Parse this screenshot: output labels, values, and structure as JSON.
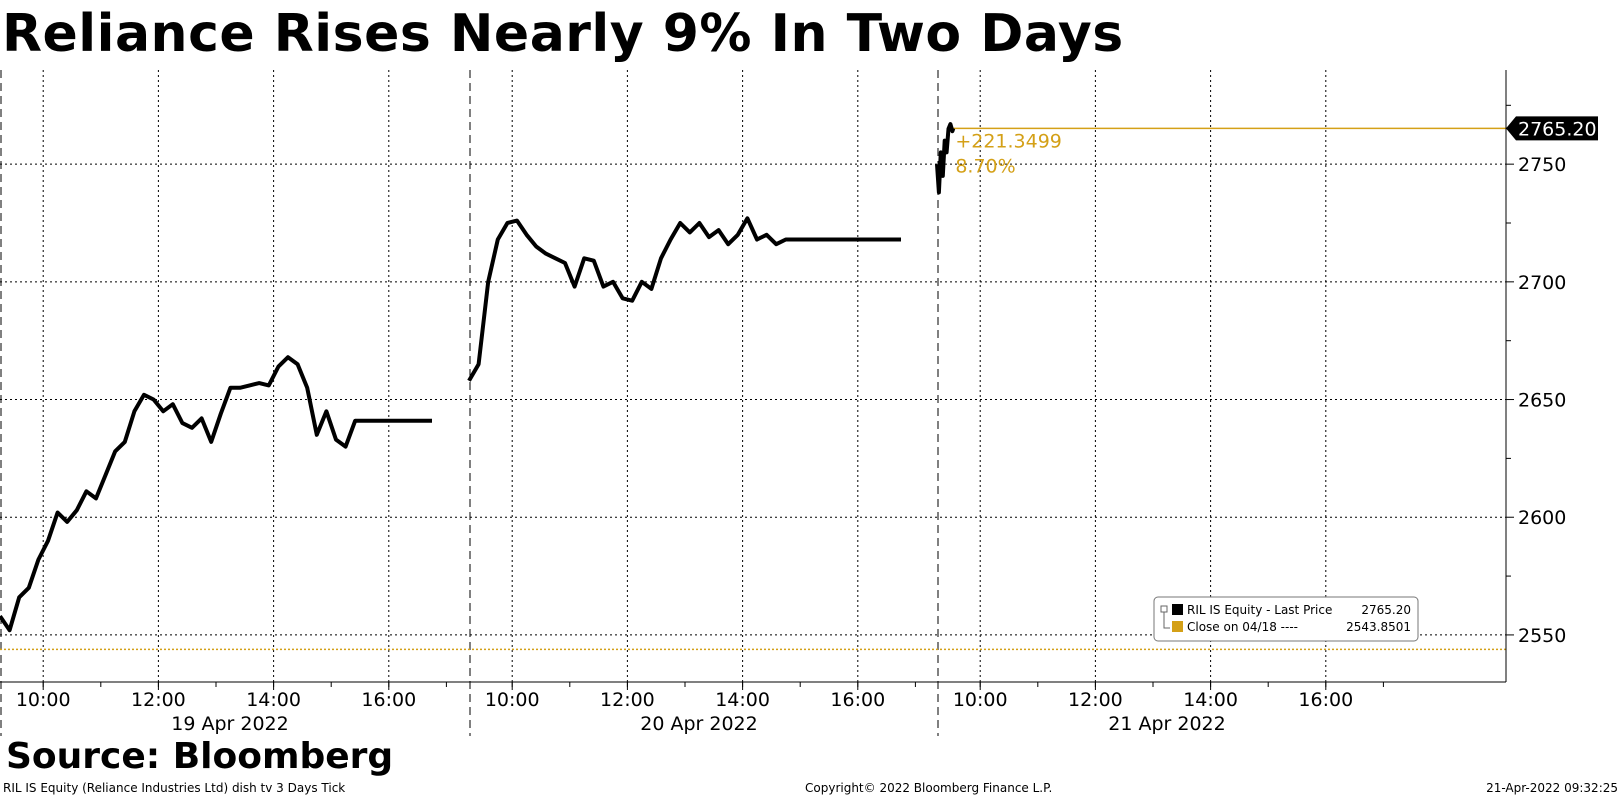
{
  "title": "Reliance Rises Nearly 9% In Two Days",
  "source": "Source: Bloomberg",
  "footer": {
    "left": "RIL IS Equity (Reliance Industries Ltd) dish tv 3 Days  Tick",
    "center": "Copyright© 2022 Bloomberg Finance L.P.",
    "right": "21-Apr-2022 09:32:25"
  },
  "colors": {
    "price": "#000000",
    "reference": "#D4A017",
    "grid": "#000000",
    "background": "#ffffff"
  },
  "chart_data": {
    "type": "line",
    "ylim": [
      2530,
      2790
    ],
    "yticks": [
      2550,
      2600,
      2650,
      2700,
      2750
    ],
    "grid": true,
    "legend_position": "bottom-right",
    "days": [
      {
        "label": "19 Apr 2022",
        "time_ticks": [
          "10:00",
          "12:00",
          "14:00",
          "16:00"
        ],
        "series_name": "RIL IS Equity - Last Price",
        "x": [
          "09:15",
          "09:25",
          "09:35",
          "09:45",
          "09:55",
          "10:05",
          "10:15",
          "10:25",
          "10:35",
          "10:45",
          "10:55",
          "11:05",
          "11:15",
          "11:25",
          "11:35",
          "11:45",
          "11:55",
          "12:05",
          "12:15",
          "12:25",
          "12:35",
          "12:45",
          "12:55",
          "13:05",
          "13:15",
          "13:25",
          "13:35",
          "13:45",
          "13:55",
          "14:05",
          "14:15",
          "14:25",
          "14:35",
          "14:45",
          "14:55",
          "15:05",
          "15:15",
          "15:25",
          "15:30",
          "16:00",
          "16:30",
          "16:45"
        ],
        "y": [
          2558,
          2552,
          2566,
          2570,
          2582,
          2590,
          2602,
          2598,
          2603,
          2611,
          2608,
          2618,
          2628,
          2632,
          2645,
          2652,
          2650,
          2645,
          2648,
          2640,
          2638,
          2642,
          2632,
          2644,
          2655,
          2655,
          2656,
          2657,
          2656,
          2664,
          2668,
          2665,
          2655,
          2635,
          2645,
          2633,
          2630,
          2641,
          2641,
          2641,
          2641,
          2641
        ]
      },
      {
        "label": "20 Apr 2022",
        "time_ticks": [
          "10:00",
          "12:00",
          "14:00",
          "16:00"
        ],
        "series_name": "RIL IS Equity - Last Price",
        "x": [
          "09:15",
          "09:25",
          "09:35",
          "09:45",
          "09:55",
          "10:05",
          "10:15",
          "10:25",
          "10:35",
          "10:45",
          "10:55",
          "11:05",
          "11:15",
          "11:25",
          "11:35",
          "11:45",
          "11:55",
          "12:05",
          "12:15",
          "12:25",
          "12:35",
          "12:45",
          "12:55",
          "13:05",
          "13:15",
          "13:25",
          "13:35",
          "13:45",
          "13:55",
          "14:05",
          "14:15",
          "14:25",
          "14:35",
          "14:45",
          "14:55",
          "15:05",
          "15:15",
          "15:25",
          "15:30",
          "16:00",
          "16:30",
          "16:45"
        ],
        "y": [
          2658,
          2665,
          2700,
          2718,
          2725,
          2726,
          2720,
          2715,
          2712,
          2710,
          2708,
          2698,
          2710,
          2709,
          2698,
          2700,
          2693,
          2692,
          2700,
          2697,
          2710,
          2718,
          2725,
          2721,
          2725,
          2719,
          2722,
          2716,
          2720,
          2727,
          2718,
          2720,
          2716,
          2718,
          2718,
          2718,
          2718,
          2718,
          2718,
          2718,
          2718,
          2718
        ]
      },
      {
        "label": "21 Apr 2022",
        "time_ticks": [
          "10:00",
          "12:00",
          "14:00",
          "16:00"
        ],
        "series_name": "RIL IS Equity - Last Price",
        "x": [
          "09:15",
          "09:17",
          "09:19",
          "09:21",
          "09:23",
          "09:25",
          "09:27",
          "09:29",
          "09:31",
          "09:32"
        ],
        "y": [
          2750,
          2738,
          2755,
          2745,
          2760,
          2755,
          2765,
          2767,
          2764,
          2765.2
        ]
      }
    ],
    "reference_line": {
      "name": "Close on 04/18 ----",
      "value": 2543.8501,
      "value_label": "2543.8501"
    },
    "last_price": {
      "name": "RIL IS Equity - Last Price",
      "value": 2765.2,
      "label": "2765.20"
    },
    "annotation": {
      "change": "+221.3499",
      "percent": "8.70%"
    }
  }
}
